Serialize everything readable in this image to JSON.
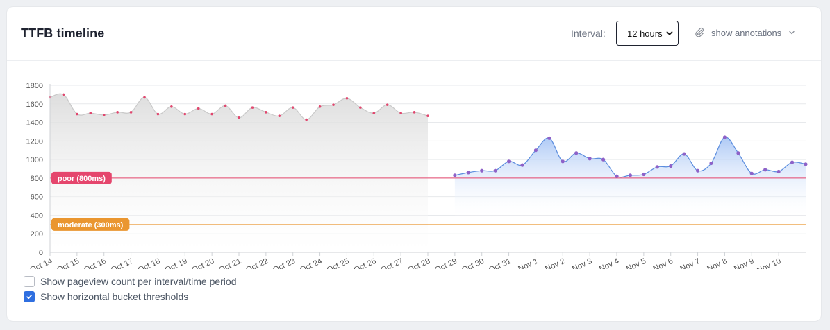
{
  "header": {
    "title": "TTFB timeline",
    "interval_label": "Interval:",
    "interval_value": "12 hours",
    "annotations_label": "show annotations"
  },
  "options": [
    {
      "label": "Show pageview count per interval/time period",
      "checked": false
    },
    {
      "label": "Show horizontal bucket thresholds",
      "checked": true
    }
  ],
  "colors": {
    "gray_series": "#c9c9c9",
    "gray_point": "#e0476e",
    "blue_series": "#5b8dde",
    "blue_point": "#8e62c8",
    "poor": "#e5466d",
    "moderate": "#ea9630",
    "checkbox": "#2f6fe0"
  },
  "chart_data": {
    "type": "area",
    "title": "TTFB timeline",
    "xlabel": "",
    "ylabel": "",
    "ylim": [
      0,
      1800
    ],
    "yticks": [
      0,
      200,
      400,
      600,
      800,
      1000,
      1200,
      1400,
      1600,
      1800
    ],
    "x_tick_labels": [
      "Oct 14",
      "Oct 15",
      "Oct 16",
      "Oct 17",
      "Oct 18",
      "Oct 19",
      "Oct 20",
      "Oct 21",
      "Oct 22",
      "Oct 23",
      "Oct 24",
      "Oct 25",
      "Oct 26",
      "Oct 27",
      "Oct 28",
      "Oct 29",
      "Oct 30",
      "Oct 31",
      "Nov 1",
      "Nov 2",
      "Nov 3",
      "Nov 4",
      "Nov 5",
      "Nov 6",
      "Nov 7",
      "Nov 8",
      "Nov 9",
      "Nov 10"
    ],
    "interval": "12 hours",
    "grid": true,
    "thresholds": [
      {
        "label": "poor (800ms)",
        "value": 800
      },
      {
        "label": "moderate (300ms)",
        "value": 300
      }
    ],
    "series": [
      {
        "style": "gray",
        "x": [
          "Oct 14 00:00",
          "Oct 14 12:00",
          "Oct 15 00:00",
          "Oct 15 12:00",
          "Oct 16 00:00",
          "Oct 16 12:00",
          "Oct 17 00:00",
          "Oct 17 12:00",
          "Oct 18 00:00",
          "Oct 18 12:00",
          "Oct 19 00:00",
          "Oct 19 12:00",
          "Oct 20 00:00",
          "Oct 20 12:00",
          "Oct 21 00:00",
          "Oct 21 12:00",
          "Oct 22 00:00",
          "Oct 22 12:00",
          "Oct 23 00:00",
          "Oct 23 12:00",
          "Oct 24 00:00",
          "Oct 24 12:00",
          "Oct 25 00:00",
          "Oct 25 12:00",
          "Oct 26 00:00",
          "Oct 26 12:00",
          "Oct 27 00:00",
          "Oct 27 12:00",
          "Oct 28 00:00"
        ],
        "values": [
          1670,
          1700,
          1490,
          1500,
          1480,
          1510,
          1510,
          1670,
          1490,
          1570,
          1490,
          1550,
          1490,
          1580,
          1450,
          1560,
          1510,
          1470,
          1560,
          1430,
          1570,
          1590,
          1660,
          1560,
          1500,
          1590,
          1500,
          1510,
          1470
        ]
      },
      {
        "style": "blue",
        "x": [
          "Oct 29 00:00",
          "Oct 29 12:00",
          "Oct 30 00:00",
          "Oct 30 12:00",
          "Oct 31 00:00",
          "Oct 31 12:00",
          "Nov 1 00:00",
          "Nov 1 12:00",
          "Nov 2 00:00",
          "Nov 2 12:00",
          "Nov 3 00:00",
          "Nov 3 12:00",
          "Nov 4 00:00",
          "Nov 4 12:00",
          "Nov 5 00:00",
          "Nov 5 12:00",
          "Nov 6 00:00",
          "Nov 6 12:00",
          "Nov 7 00:00",
          "Nov 7 12:00",
          "Nov 8 00:00",
          "Nov 8 12:00",
          "Nov 9 00:00",
          "Nov 9 12:00",
          "Nov 10 00:00",
          "Nov 10 12:00",
          "Nov 11 00:00"
        ],
        "values": [
          830,
          860,
          880,
          880,
          980,
          940,
          1100,
          1230,
          980,
          1070,
          1010,
          1000,
          820,
          830,
          840,
          920,
          930,
          1060,
          880,
          960,
          1240,
          1070,
          850,
          890,
          870,
          970,
          950
        ]
      }
    ]
  }
}
